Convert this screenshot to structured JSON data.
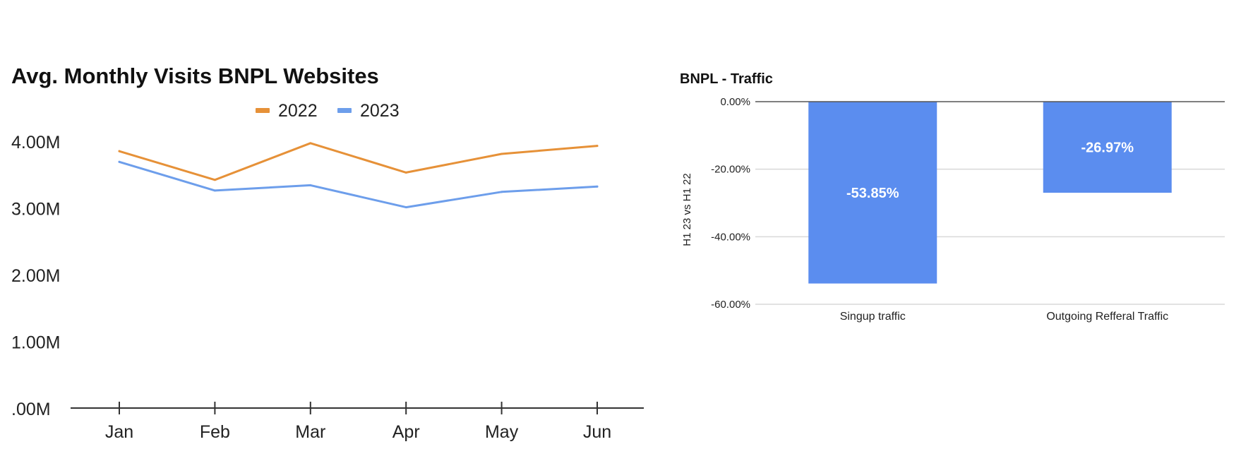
{
  "colors": {
    "series_2022": "#e69138",
    "series_2023": "#6d9eeb",
    "bar": "#5b8def",
    "axis": "#333333",
    "grid": "#d9d9d9",
    "text": "#222222"
  },
  "chart_data": [
    {
      "type": "line",
      "title": "Avg. Monthly Visits BNPL Websites",
      "xlabel": "",
      "ylabel": "",
      "categories": [
        "Jan",
        "Feb",
        "Mar",
        "Apr",
        "May",
        "Jun"
      ],
      "series": [
        {
          "name": "2022",
          "values": [
            3.85,
            3.42,
            3.97,
            3.53,
            3.81,
            3.93
          ]
        },
        {
          "name": "2023",
          "values": [
            3.69,
            3.26,
            3.34,
            3.01,
            3.24,
            3.32
          ]
        }
      ],
      "unit": "M",
      "ylim": [
        0,
        4
      ],
      "yticks": [
        0,
        1,
        2,
        3,
        4
      ],
      "ytick_labels": [
        ".00M",
        "1.00M",
        "2.00M",
        "3.00M",
        "4.00M"
      ],
      "legend": "top-center",
      "grid": false
    },
    {
      "type": "bar",
      "title": "BNPL - Traffic",
      "xlabel": "",
      "ylabel": "H1 23 vs H1 22",
      "categories": [
        "Singup traffic",
        "Outgoing Refferal Traffic"
      ],
      "values": [
        -53.85,
        -26.97
      ],
      "data_labels": [
        "-53.85%",
        "-26.97%"
      ],
      "ylim": [
        -60,
        0
      ],
      "yticks": [
        0,
        -20,
        -40,
        -60
      ],
      "ytick_labels": [
        "0.00%",
        "-20.00%",
        "-40.00%",
        "-60.00%"
      ],
      "grid": true
    }
  ]
}
